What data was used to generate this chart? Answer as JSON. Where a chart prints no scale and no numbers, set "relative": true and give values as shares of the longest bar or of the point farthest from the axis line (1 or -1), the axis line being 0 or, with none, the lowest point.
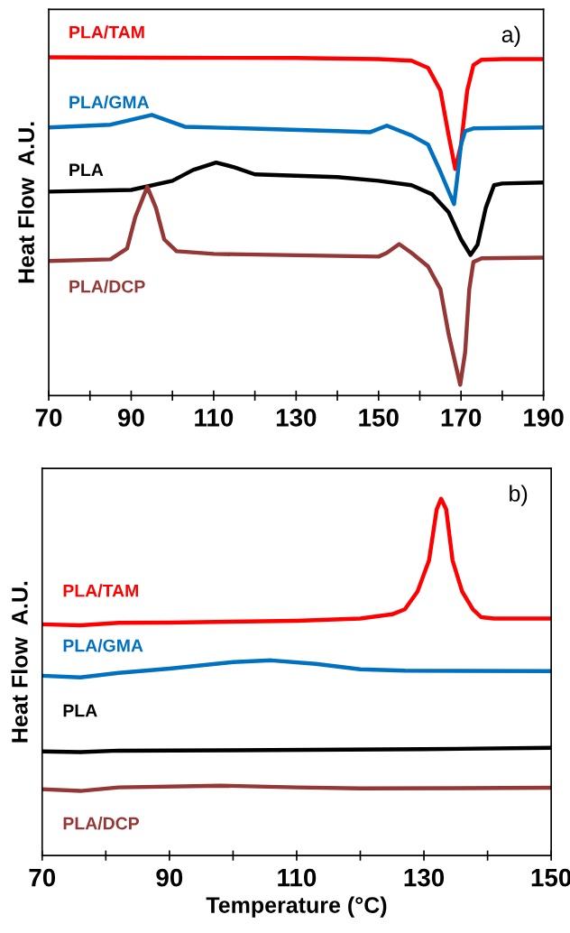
{
  "chart_data": [
    {
      "type": "line",
      "relative": true,
      "ylabel": "Heat Flow  A.U.",
      "annotations": [
        "a)"
      ],
      "xlim": [
        70,
        190
      ],
      "xticks": [
        70,
        {
          "value": 80,
          "label": null
        },
        90,
        {
          "value": 100,
          "label": null
        },
        110,
        {
          "value": 120,
          "label": null
        },
        130,
        {
          "value": 140,
          "label": null
        },
        150,
        {
          "value": 160,
          "label": null
        },
        170,
        {
          "value": 180,
          "label": null
        },
        190
      ],
      "legend": false,
      "grid": false,
      "marker": "none",
      "line_style": "solid",
      "series": [
        {
          "name": "PLA/TAM",
          "color": "#ff0000",
          "x": [
            70,
            100,
            130,
            150,
            158,
            162,
            165,
            167,
            168.6,
            170,
            171.5,
            173,
            175,
            180,
            190
          ],
          "values": [
            1.0,
            0.999,
            0.998,
            0.995,
            0.99,
            0.969,
            0.902,
            0.769,
            0.67,
            0.742,
            0.902,
            0.977,
            0.993,
            0.995,
            0.995
          ]
        },
        {
          "name": "PLA/GMA",
          "color": "#0070c0",
          "x": [
            70,
            85,
            95,
            103,
            140,
            148,
            152,
            158,
            162,
            165,
            168.3,
            169,
            170,
            171,
            173,
            190
          ],
          "values": [
            0.793,
            0.801,
            0.83,
            0.795,
            0.782,
            0.779,
            0.798,
            0.769,
            0.742,
            0.662,
            0.566,
            0.635,
            0.742,
            0.782,
            0.79,
            0.793
          ]
        },
        {
          "name": "PLA",
          "color": "#000000",
          "x": [
            70,
            90,
            100,
            105,
            110.6,
            115,
            120,
            140,
            150,
            158,
            163,
            167,
            170,
            172.3,
            174,
            176,
            178,
            180,
            190
          ],
          "values": [
            0.603,
            0.608,
            0.635,
            0.667,
            0.689,
            0.675,
            0.654,
            0.646,
            0.635,
            0.622,
            0.595,
            0.542,
            0.462,
            0.416,
            0.446,
            0.555,
            0.622,
            0.627,
            0.63
          ]
        },
        {
          "name": "PLA/DCP",
          "color": "#953735",
          "x": [
            70,
            85,
            89,
            91,
            93.9,
            96,
            98,
            101,
            110,
            150,
            152,
            155,
            158,
            162,
            165,
            167,
            169.8,
            171,
            172,
            173,
            175,
            190
          ],
          "values": [
            0.398,
            0.403,
            0.435,
            0.528,
            0.617,
            0.555,
            0.462,
            0.427,
            0.419,
            0.411,
            0.422,
            0.448,
            0.422,
            0.382,
            0.315,
            0.181,
            0.032,
            0.128,
            0.315,
            0.395,
            0.406,
            0.408
          ]
        }
      ]
    },
    {
      "type": "line",
      "relative": true,
      "ylabel": "Heat Flow  A.U.",
      "xlabel": "Temperature (°C)",
      "annotations": [
        "b)"
      ],
      "xlim": [
        70,
        150
      ],
      "xticks": [
        70,
        {
          "value": 80,
          "label": null
        },
        90,
        {
          "value": 100,
          "label": null
        },
        110,
        {
          "value": 120,
          "label": null
        },
        130,
        {
          "value": 140,
          "label": null
        },
        150
      ],
      "legend": false,
      "grid": false,
      "marker": "none",
      "line_style": "solid",
      "series": [
        {
          "name": "PLA/TAM",
          "color": "#ff0000",
          "x": [
            70,
            76,
            82,
            90,
            110,
            120,
            125,
            127,
            129,
            130.8,
            132,
            132.7,
            133.5,
            134.5,
            136,
            137.7,
            139,
            141,
            150
          ],
          "values": [
            0.648,
            0.645,
            0.652,
            0.653,
            0.658,
            0.664,
            0.676,
            0.69,
            0.74,
            0.827,
            0.97,
            1.0,
            0.97,
            0.827,
            0.74,
            0.69,
            0.668,
            0.664,
            0.664
          ]
        },
        {
          "name": "PLA/GMA",
          "color": "#0070c0",
          "x": [
            70,
            76,
            82,
            90,
            100,
            106,
            113,
            120,
            127,
            150
          ],
          "values": [
            0.504,
            0.499,
            0.512,
            0.524,
            0.542,
            0.547,
            0.537,
            0.522,
            0.518,
            0.517
          ]
        },
        {
          "name": "PLA",
          "color": "#000000",
          "x": [
            70,
            76,
            82,
            100,
            130,
            150
          ],
          "values": [
            0.292,
            0.29,
            0.294,
            0.295,
            0.298,
            0.302
          ]
        },
        {
          "name": "PLA/DCP",
          "color": "#953735",
          "x": [
            70,
            76,
            82,
            98,
            110,
            120,
            150
          ],
          "values": [
            0.186,
            0.181,
            0.191,
            0.196,
            0.191,
            0.188,
            0.19
          ]
        }
      ]
    }
  ]
}
